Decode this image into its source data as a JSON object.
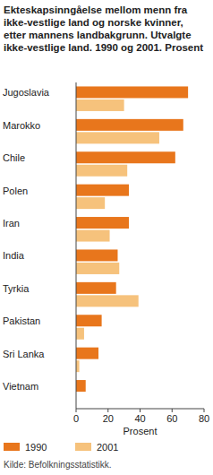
{
  "chart_data": {
    "type": "bar",
    "orientation": "horizontal",
    "title": "Ekteskapsinngåelse mellom menn fra ikke-vestlige land og norske kvinner, etter mannens landbakgrunn. Utvalgte ikke-vestlige land. 1990 og 2001. Prosent",
    "x_label": "Prosent",
    "source": "Kilde: Befolkningsstatistikk.",
    "categories": [
      "Jugoslavia",
      "Marokko",
      "Chile",
      "Polen",
      "Iran",
      "India",
      "Tyrkia",
      "Pakistan",
      "Sri Lanka",
      "Vietnam"
    ],
    "series": [
      {
        "name": "1990",
        "color": "#e8761c",
        "values": [
          70,
          67,
          62,
          33,
          33,
          26,
          25,
          16,
          14,
          6
        ]
      },
      {
        "name": "2001",
        "color": "#f6c27c",
        "values": [
          30,
          52,
          32,
          18,
          21,
          27,
          39,
          5,
          2,
          null
        ]
      }
    ],
    "xlim": [
      0,
      80
    ],
    "xticks": [
      0,
      20,
      40,
      60,
      80
    ],
    "grid": false,
    "legend": "bottom"
  }
}
